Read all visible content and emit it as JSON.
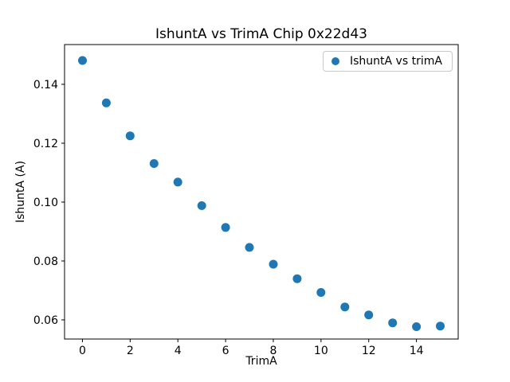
{
  "figure": {
    "background": "#ffffff",
    "axis_color": "#000000"
  },
  "chart_data": {
    "type": "scatter",
    "title": "IshuntA vs TrimA Chip 0x22d43",
    "xlabel": "TrimA",
    "ylabel": "IshuntA (A)",
    "legend": {
      "label": "IshuntA vs trimA",
      "position": "upper right"
    },
    "marker_color": "#1f77b4",
    "marker_radius_px": 5.5,
    "grid": false,
    "x": [
      0,
      1,
      2,
      3,
      4,
      5,
      6,
      7,
      8,
      9,
      10,
      11,
      12,
      13,
      14,
      15
    ],
    "y": [
      0.1481,
      0.1337,
      0.1225,
      0.1131,
      0.1068,
      0.0988,
      0.0914,
      0.0846,
      0.0789,
      0.074,
      0.0693,
      0.0644,
      0.0617,
      0.059,
      0.0577,
      0.0579
    ],
    "xlim": [
      -0.75,
      15.75
    ],
    "ylim": [
      0.0535,
      0.1535
    ],
    "xticks": [
      0,
      2,
      4,
      6,
      8,
      10,
      12,
      14
    ],
    "yticks": [
      0.06,
      0.08,
      0.1,
      0.12,
      0.14
    ]
  }
}
